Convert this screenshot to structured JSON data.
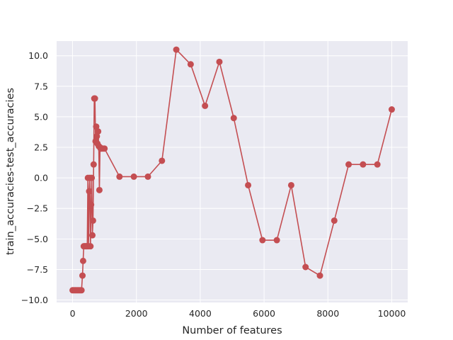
{
  "chart_data": {
    "type": "line",
    "title": "",
    "xlabel": "Number of features",
    "ylabel": "train_accuracies-test_accuracies",
    "xlim": [
      -500,
      10500
    ],
    "ylim": [
      -10.2,
      11.2
    ],
    "x_ticks": [
      0,
      2000,
      4000,
      6000,
      8000,
      10000
    ],
    "x_tick_labels": [
      "0",
      "2000",
      "4000",
      "6000",
      "8000",
      "10000"
    ],
    "y_ticks": [
      -10.0,
      -7.5,
      -5.0,
      -2.5,
      0.0,
      2.5,
      5.0,
      7.5,
      10.0
    ],
    "y_tick_labels": [
      "−10.0",
      "−7.5",
      "−5.0",
      "−2.5",
      "0.0",
      "2.5",
      "5.0",
      "7.5",
      "10.0"
    ],
    "grid": true,
    "legend": "none",
    "colors": {
      "series": "#c44e52",
      "background": "#eaeaf2",
      "grid": "#ffffff"
    },
    "series": [
      {
        "marker": "circle",
        "points": [
          [
            0,
            -9.2
          ],
          [
            40,
            -9.2
          ],
          [
            80,
            -9.2
          ],
          [
            120,
            -9.2
          ],
          [
            160,
            -9.2
          ],
          [
            200,
            -9.2
          ],
          [
            240,
            -9.2
          ],
          [
            280,
            -9.2
          ],
          [
            310,
            -8.0
          ],
          [
            330,
            -6.8
          ],
          [
            350,
            -5.6
          ],
          [
            380,
            -5.6
          ],
          [
            410,
            -5.6
          ],
          [
            440,
            -5.6
          ],
          [
            460,
            -5.6
          ],
          [
            480,
            0.0
          ],
          [
            500,
            -5.6
          ],
          [
            520,
            -1.1
          ],
          [
            540,
            0.0
          ],
          [
            560,
            -5.6
          ],
          [
            580,
            -2.2
          ],
          [
            600,
            0.0
          ],
          [
            620,
            -4.7
          ],
          [
            640,
            -3.5
          ],
          [
            660,
            1.1
          ],
          [
            680,
            6.5
          ],
          [
            700,
            6.5
          ],
          [
            720,
            3.0
          ],
          [
            740,
            4.2
          ],
          [
            760,
            3.4
          ],
          [
            780,
            2.8
          ],
          [
            800,
            3.8
          ],
          [
            820,
            2.6
          ],
          [
            840,
            -1.0
          ],
          [
            860,
            2.5
          ],
          [
            880,
            2.4
          ],
          [
            900,
            2.4
          ],
          [
            950,
            2.4
          ],
          [
            1000,
            2.4
          ],
          [
            1470,
            0.1
          ],
          [
            1920,
            0.1
          ],
          [
            2360,
            0.1
          ],
          [
            2800,
            1.4
          ],
          [
            3250,
            10.5
          ],
          [
            3700,
            9.3
          ],
          [
            4150,
            5.9
          ],
          [
            4600,
            9.5
          ],
          [
            5050,
            4.9
          ],
          [
            5500,
            -0.6
          ],
          [
            5950,
            -5.1
          ],
          [
            6400,
            -5.1
          ],
          [
            6850,
            -0.6
          ],
          [
            7300,
            -7.3
          ],
          [
            7750,
            -8.0
          ],
          [
            8200,
            -3.5
          ],
          [
            8650,
            1.1
          ],
          [
            9100,
            1.1
          ],
          [
            9550,
            1.1
          ],
          [
            10000,
            5.6
          ]
        ]
      }
    ]
  }
}
